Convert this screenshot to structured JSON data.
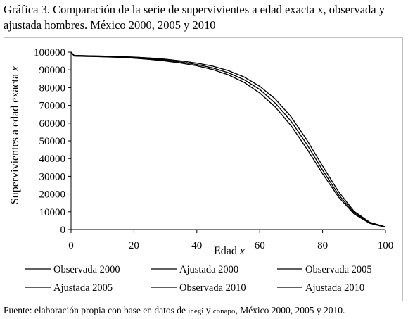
{
  "title": "Gráfica 3. Comparación de la serie de supervivientes a edad exacta x, observada y ajustada hombres. México 2000, 2005 y 2010",
  "source": {
    "prefix": "Fuente: elaboración propia con base en datos de ",
    "inegi": "inegi",
    "mid": " y ",
    "conapo": "conapo",
    "suffix": ", México 2000, 2005 y 2010."
  },
  "chart_data": {
    "type": "line",
    "xlabel": "Edad x",
    "ylabel": "Supervivientes a edad exacta x",
    "xlim": [
      0,
      100
    ],
    "ylim": [
      0,
      100000
    ],
    "x_ticks": [
      "0",
      "20",
      "40",
      "60",
      "80",
      "100"
    ],
    "y_ticks": [
      "0",
      "10000",
      "20000",
      "30000",
      "40000",
      "50000",
      "60000",
      "70000",
      "80000",
      "90000",
      "100000"
    ],
    "grid": false,
    "legend_position": "bottom",
    "x": [
      0,
      1,
      5,
      10,
      15,
      20,
      25,
      30,
      35,
      40,
      45,
      50,
      55,
      60,
      65,
      70,
      75,
      80,
      85,
      90,
      95,
      100
    ],
    "series": [
      {
        "name": "Observada 2000",
        "values": [
          100000,
          97800,
          97600,
          97400,
          97100,
          96600,
          95900,
          95000,
          93800,
          92300,
          90200,
          87200,
          83000,
          77000,
          69000,
          58500,
          45500,
          31500,
          18500,
          8800,
          3500,
          1300
        ]
      },
      {
        "name": "Ajustada 2000",
        "values": [
          100000,
          97800,
          97600,
          97400,
          97100,
          96600,
          95900,
          95000,
          93800,
          92300,
          90200,
          87200,
          83000,
          77000,
          69000,
          58500,
          45500,
          31500,
          18500,
          8800,
          3500,
          1300
        ]
      },
      {
        "name": "Observada 2005",
        "values": [
          100000,
          98000,
          97800,
          97600,
          97300,
          96900,
          96300,
          95500,
          94400,
          93000,
          91100,
          88400,
          84500,
          79000,
          71200,
          61000,
          48000,
          33500,
          19800,
          9500,
          3800,
          1400
        ]
      },
      {
        "name": "Ajustada 2005",
        "values": [
          100000,
          98000,
          97800,
          97600,
          97300,
          96900,
          96300,
          95500,
          94400,
          93000,
          91100,
          88400,
          84500,
          79000,
          71200,
          61000,
          48000,
          33500,
          19800,
          9500,
          3800,
          1400
        ]
      },
      {
        "name": "Observada 2010",
        "values": [
          100000,
          98200,
          98000,
          97800,
          97500,
          97200,
          96700,
          96000,
          95000,
          93800,
          92100,
          89600,
          86000,
          80800,
          73500,
          63500,
          50500,
          35800,
          21500,
          10300,
          4100,
          1500
        ]
      },
      {
        "name": "Ajustada 2010",
        "values": [
          100000,
          98200,
          98000,
          97800,
          97500,
          97200,
          96700,
          96000,
          95000,
          93800,
          92100,
          89600,
          86000,
          80800,
          73500,
          63500,
          50500,
          35800,
          21500,
          10300,
          4100,
          1500
        ]
      }
    ],
    "line_color": "#000000"
  }
}
